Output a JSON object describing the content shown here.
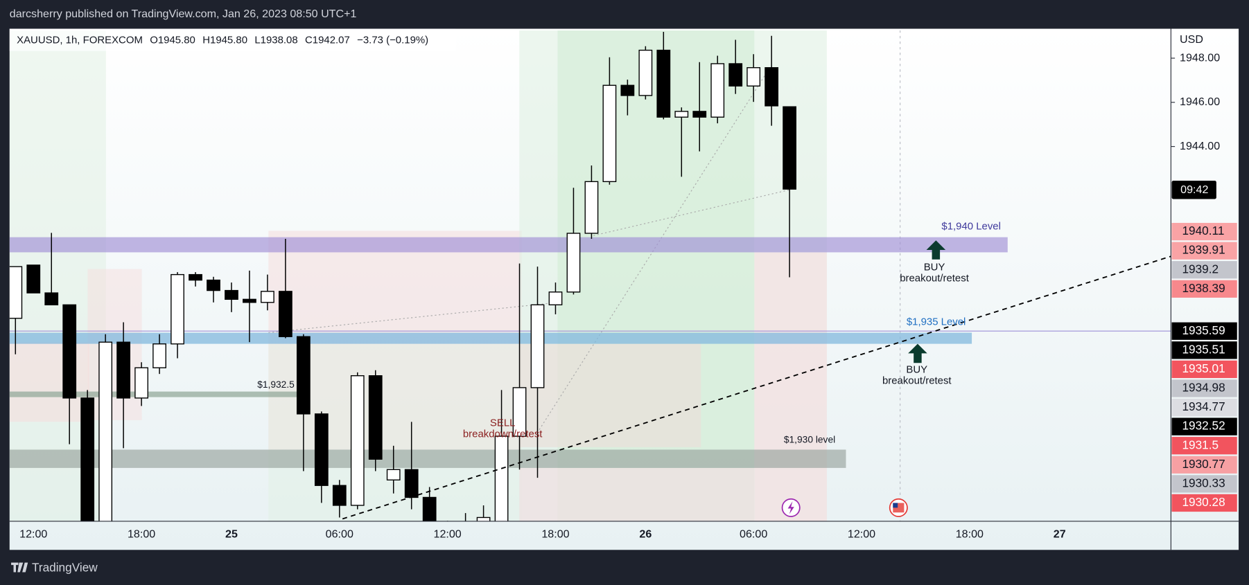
{
  "top_bar": "darcsherry published on TradingView.com, Jan 26, 2023 08:50 UTC+1",
  "footer": "TradingView",
  "header": {
    "symbol": "XAUUSD, 1h, FOREXCOM",
    "open": "O1945.80",
    "high": "H1945.80",
    "low": "L1938.08",
    "close": "C1942.07",
    "change": "−3.73 (−0.19%)"
  },
  "annotations": {
    "level_1940": "$1,940 Level",
    "level_1935": "$1,935 Level",
    "level_1932": "$1,932.5",
    "level_1930": "$1,930 level",
    "buy": "BUY",
    "buy_sub": "breakout/retest",
    "buy2": "BUY",
    "buy2_sub": "breakout/retest",
    "sell": "SELL",
    "sell_sub": "breakdown/retest"
  },
  "chart_data": {
    "type": "candlestick",
    "currency": "USD",
    "countdown": "09:42",
    "up_color": "#ffffff",
    "down_color": "#000000",
    "categories": [
      null,
      "12:00",
      null,
      null,
      null,
      null,
      null,
      "18:00",
      null,
      null,
      null,
      null,
      "25",
      null,
      null,
      null,
      null,
      null,
      "06:00",
      null,
      null,
      null,
      null,
      null,
      "12:00",
      null,
      null,
      null,
      null,
      null,
      "18:00",
      null,
      null,
      null,
      null,
      "26",
      null,
      null,
      null,
      null,
      null,
      "06:00",
      null,
      null,
      null,
      null,
      null,
      "12:00",
      null,
      null,
      null,
      null,
      null,
      "18:00",
      null,
      null,
      null,
      null,
      "27",
      null,
      null,
      null,
      null,
      null
    ],
    "open": [
      1936.22,
      1938.63,
      1937.37,
      1936.83,
      1932.61,
      1926.5,
      1935.14,
      1932.61,
      1933.98,
      1935.06,
      1938.2,
      1937.95,
      1937.48,
      1937.08,
      1936.94,
      1937.44,
      1935.39,
      1931.89,
      1928.65,
      1927.75,
      1933.62,
      1928.9,
      1929.37,
      1928.11,
      1926.8,
      1926.2,
      1926.9,
      1926.9,
      1930.88,
      1933.08,
      1936.83,
      1937.41,
      1940.07,
      1942.41,
      1946.77,
      1946.31,
      1948.36,
      1945.33,
      1945.59,
      1945.33,
      1947.75,
      1946.74,
      1947.57,
      1945.8,
      null,
      null,
      null,
      null,
      null,
      null,
      null,
      null,
      null,
      null,
      null,
      null,
      null,
      null,
      null,
      null,
      null,
      null,
      null,
      null
    ],
    "high": [
      1938.56,
      1938.63,
      1940.09,
      1936.83,
      1932.97,
      1935.5,
      1936.04,
      1934.23,
      1935.5,
      1938.31,
      1938.31,
      1938.1,
      1937.84,
      1938.38,
      1938.2,
      1939.82,
      1935.5,
      1932.0,
      1928.9,
      1933.77,
      1933.87,
      1930.45,
      1931.53,
      1928.58,
      1927.05,
      1927.4,
      1927.75,
      1932.97,
      1938.7,
      1938.56,
      1937.84,
      1942.13,
      1943.14,
      1948.04,
      1947.03,
      1948.54,
      1949.19,
      1945.77,
      1947.82,
      1948.11,
      1948.83,
      1948.18,
      1949.01,
      1945.8,
      null,
      null,
      null,
      null,
      null,
      null,
      null,
      null,
      null,
      null,
      null,
      null,
      null,
      null,
      null,
      null,
      null,
      null,
      null,
      null
    ],
    "low": [
      1934.59,
      1937.37,
      1936.83,
      1930.52,
      1925.41,
      1925.9,
      1930.34,
      1932.25,
      1933.7,
      1934.41,
      1937.66,
      1936.94,
      1936.5,
      1935.14,
      1936.58,
      1935.32,
      1929.3,
      1927.86,
      1927.2,
      1927.57,
      1929.3,
      1928.29,
      1927.57,
      1926.5,
      1925.9,
      1926.0,
      1926.5,
      1926.5,
      1929.37,
      1929.0,
      1936.4,
      1937.3,
      1939.82,
      1942.27,
      1945.41,
      1946.13,
      1945.23,
      1942.63,
      1943.78,
      1945.05,
      1946.38,
      1946.02,
      1944.94,
      1938.08,
      null,
      null,
      null,
      null,
      null,
      null,
      null,
      null,
      null,
      null,
      null,
      null,
      null,
      null,
      null,
      null,
      null,
      null,
      null,
      null
    ],
    "close": [
      1938.56,
      1937.37,
      1936.83,
      1932.61,
      1926.0,
      1935.14,
      1932.61,
      1933.98,
      1935.06,
      1938.2,
      1937.95,
      1937.48,
      1937.08,
      1936.94,
      1937.44,
      1935.39,
      1931.89,
      1928.65,
      1927.75,
      1933.62,
      1929.84,
      1929.37,
      1928.11,
      1926.8,
      1926.2,
      1926.9,
      1927.2,
      1930.88,
      1933.08,
      1936.83,
      1937.41,
      1940.07,
      1942.41,
      1946.77,
      1946.31,
      1948.36,
      1945.33,
      1945.59,
      1945.33,
      1947.75,
      1946.74,
      1947.57,
      1945.84,
      1942.07,
      null,
      null,
      null,
      null,
      null,
      null,
      null,
      null,
      null,
      null,
      null,
      null,
      null,
      null,
      null,
      null,
      null,
      null,
      null,
      null
    ],
    "ylim": [
      1927.03,
      1949.26
    ],
    "yticks": [
      {
        "value": 1948,
        "label": "1948.00"
      },
      {
        "value": 1946,
        "label": "1946.00"
      },
      {
        "value": 1944,
        "label": "1944.00"
      }
    ],
    "grid": false,
    "price_labels": [
      1940.11,
      1939.91,
      1939.2,
      1938.39,
      1935.59,
      1935.51,
      1935.01,
      1934.98,
      1934.77,
      1932.52,
      1931.5,
      1930.77,
      1930.33,
      1930.28
    ],
    "price_label_colors": [
      "#f9a3a5",
      "#f9a3a5",
      "#c3c5cc",
      "#f7888c",
      "#000000",
      "#000000",
      "#f2545e",
      "#c3c5cc",
      "#dcdde2",
      "#000000",
      "#f2545e",
      "#f7a0a3",
      "#c3c5cc",
      "#f2545e"
    ]
  }
}
